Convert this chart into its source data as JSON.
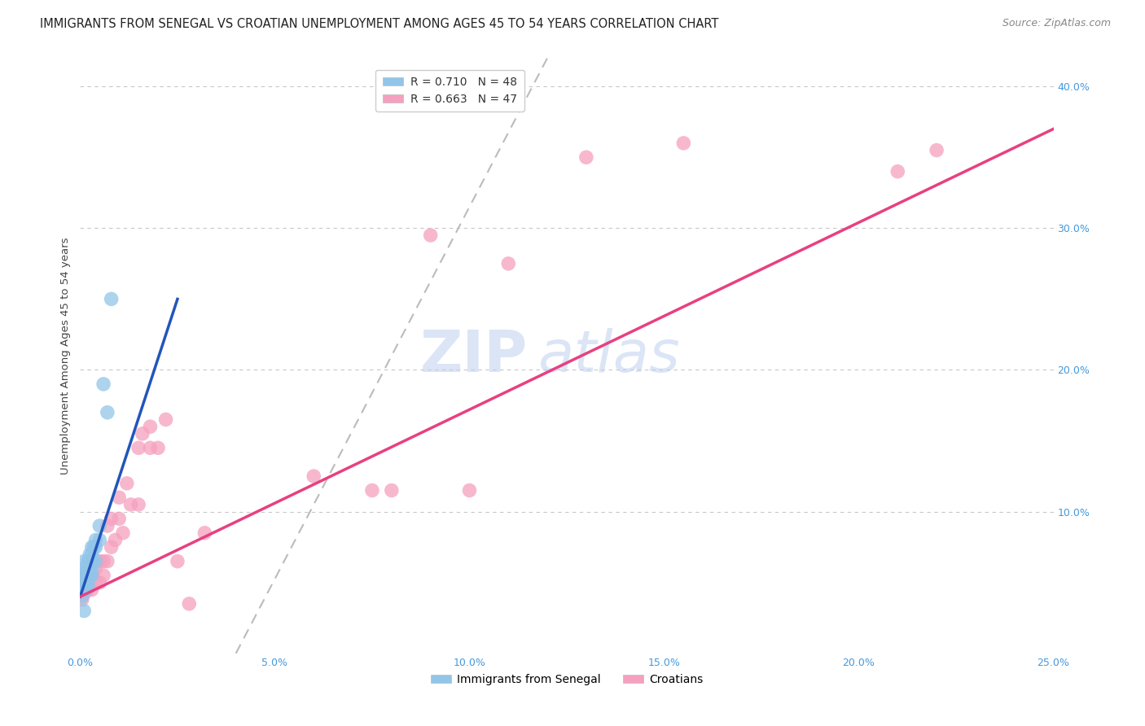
{
  "title": "IMMIGRANTS FROM SENEGAL VS CROATIAN UNEMPLOYMENT AMONG AGES 45 TO 54 YEARS CORRELATION CHART",
  "source": "Source: ZipAtlas.com",
  "ylabel": "Unemployment Among Ages 45 to 54 years",
  "xlim": [
    0.0,
    0.25
  ],
  "ylim": [
    0.0,
    0.42
  ],
  "xticks": [
    0.0,
    0.05,
    0.1,
    0.15,
    0.2,
    0.25
  ],
  "yticks": [
    0.1,
    0.2,
    0.3,
    0.4
  ],
  "xtick_labels": [
    "0.0%",
    "5.0%",
    "10.0%",
    "15.0%",
    "20.0%",
    "25.0%"
  ],
  "ytick_labels": [
    "10.0%",
    "20.0%",
    "30.0%",
    "40.0%"
  ],
  "background_color": "#ffffff",
  "grid_color": "#c8c8c8",
  "watermark_zip": "ZIP",
  "watermark_atlas": "atlas",
  "legend_text1": "R = 0.710   N = 48",
  "legend_text2": "R = 0.663   N = 47",
  "senegal_color": "#92C5E8",
  "croatian_color": "#F5A0BE",
  "senegal_line_color": "#2255BB",
  "croatian_line_color": "#E84080",
  "diagonal_color": "#BBBBBB",
  "tick_color": "#4499DD",
  "senegal_x": [
    0.0005,
    0.0005,
    0.0005,
    0.0008,
    0.001,
    0.001,
    0.001,
    0.001,
    0.001,
    0.0012,
    0.0012,
    0.0014,
    0.0015,
    0.0015,
    0.0015,
    0.0015,
    0.0016,
    0.0016,
    0.0018,
    0.0018,
    0.002,
    0.002,
    0.002,
    0.002,
    0.002,
    0.0022,
    0.0022,
    0.0024,
    0.0025,
    0.0025,
    0.003,
    0.003,
    0.003,
    0.003,
    0.003,
    0.0032,
    0.0035,
    0.004,
    0.004,
    0.004,
    0.005,
    0.005,
    0.006,
    0.007,
    0.008,
    0.002,
    0.003,
    0.001
  ],
  "senegal_y": [
    0.04,
    0.055,
    0.045,
    0.05,
    0.045,
    0.05,
    0.055,
    0.06,
    0.065,
    0.048,
    0.052,
    0.048,
    0.045,
    0.05,
    0.055,
    0.058,
    0.05,
    0.055,
    0.05,
    0.055,
    0.048,
    0.052,
    0.056,
    0.06,
    0.065,
    0.055,
    0.065,
    0.06,
    0.055,
    0.07,
    0.055,
    0.06,
    0.065,
    0.07,
    0.075,
    0.065,
    0.075,
    0.065,
    0.075,
    0.08,
    0.08,
    0.09,
    0.19,
    0.17,
    0.25,
    0.06,
    0.065,
    0.03
  ],
  "croatian_x": [
    0.0005,
    0.001,
    0.001,
    0.001,
    0.0015,
    0.002,
    0.002,
    0.002,
    0.003,
    0.003,
    0.003,
    0.004,
    0.004,
    0.005,
    0.005,
    0.006,
    0.006,
    0.007,
    0.007,
    0.008,
    0.008,
    0.009,
    0.01,
    0.01,
    0.011,
    0.012,
    0.013,
    0.015,
    0.015,
    0.016,
    0.018,
    0.018,
    0.02,
    0.022,
    0.025,
    0.028,
    0.032,
    0.06,
    0.075,
    0.08,
    0.09,
    0.1,
    0.11,
    0.13,
    0.155,
    0.21,
    0.22
  ],
  "croatian_y": [
    0.038,
    0.042,
    0.05,
    0.055,
    0.048,
    0.045,
    0.052,
    0.058,
    0.045,
    0.055,
    0.065,
    0.05,
    0.06,
    0.05,
    0.065,
    0.055,
    0.065,
    0.065,
    0.09,
    0.075,
    0.095,
    0.08,
    0.095,
    0.11,
    0.085,
    0.12,
    0.105,
    0.105,
    0.145,
    0.155,
    0.145,
    0.16,
    0.145,
    0.165,
    0.065,
    0.035,
    0.085,
    0.125,
    0.115,
    0.115,
    0.295,
    0.115,
    0.275,
    0.35,
    0.36,
    0.34,
    0.355
  ],
  "title_fontsize": 10.5,
  "source_fontsize": 9,
  "ylabel_fontsize": 9.5,
  "tick_fontsize": 9,
  "legend_fontsize": 10
}
